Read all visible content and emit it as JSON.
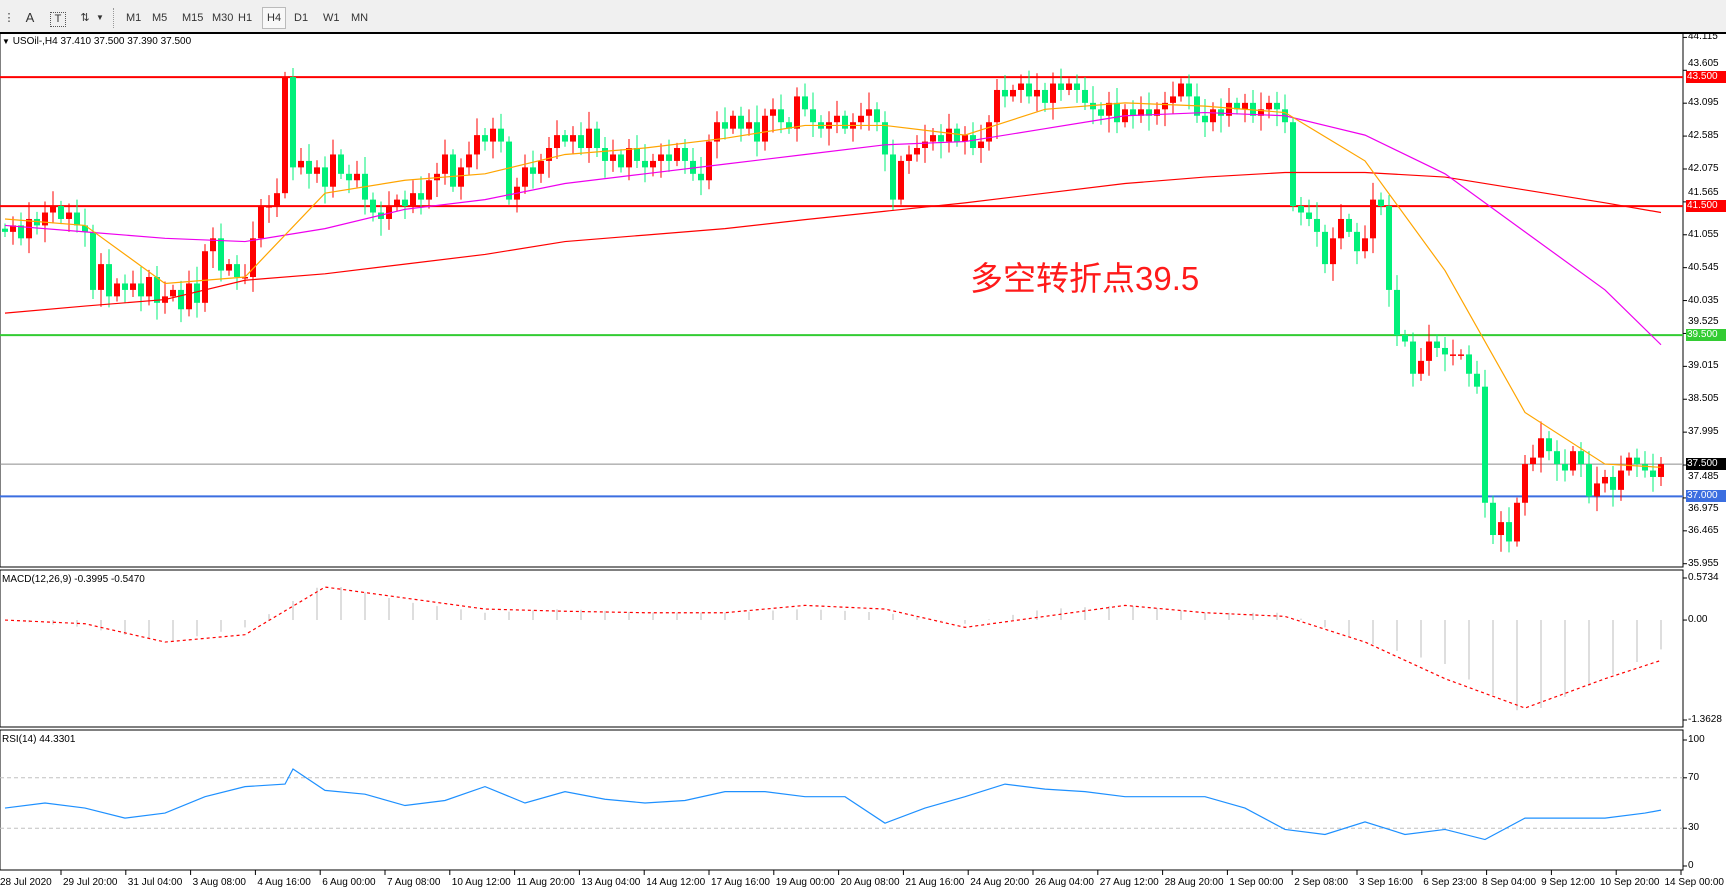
{
  "toolbar": {
    "text_tool": "A",
    "label_tool": "T",
    "timeframes": [
      "M1",
      "M5",
      "M15",
      "M30",
      "H1",
      "H4",
      "D1",
      "W1",
      "MN"
    ],
    "active_timeframe": "H4"
  },
  "chart": {
    "header": "USOil-,H4  37.410 37.500 37.390 37.500",
    "annotation": "多空转折点39.5",
    "price_axis": [
      "44.115",
      "43.605",
      "43.095",
      "42.585",
      "42.075",
      "41.565",
      "41.055",
      "40.545",
      "40.035",
      "39.525",
      "39.015",
      "38.505",
      "37.995",
      "37.485",
      "36.975",
      "36.465",
      "35.955"
    ],
    "levels": [
      {
        "price": 43.5,
        "label": "43.500",
        "color": "#ff0000"
      },
      {
        "price": 41.5,
        "label": "41.500",
        "color": "#ff0000"
      },
      {
        "price": 39.5,
        "label": "39.500",
        "color": "#33cc33"
      },
      {
        "price": 37.5,
        "label": "37.500",
        "color": "#000000",
        "line": "#8c8c8c"
      },
      {
        "price": 37.0,
        "label": "37.000",
        "color": "#3b6ee0"
      }
    ],
    "colors": {
      "up": "#ff0000",
      "down": "#00f07a",
      "ma_fast": "#ffa500",
      "ma_mid": "#ee00ee",
      "ma_slow": "#ff0000"
    },
    "time_axis": [
      "28 Jul 2020",
      "29 Jul 20:00",
      "31 Jul 04:00",
      "3 Aug 08:00",
      "4 Aug 16:00",
      "6 Aug 00:00",
      "7 Aug 08:00",
      "10 Aug 12:00",
      "11 Aug 20:00",
      "13 Aug 04:00",
      "14 Aug 12:00",
      "17 Aug 16:00",
      "19 Aug 00:00",
      "20 Aug 08:00",
      "21 Aug 16:00",
      "24 Aug 20:00",
      "26 Aug 04:00",
      "27 Aug 12:00",
      "28 Aug 20:00",
      "1 Sep 00:00",
      "2 Sep 08:00",
      "3 Sep 16:00",
      "6 Sep 23:00",
      "8 Sep 04:00",
      "9 Sep 12:00",
      "10 Sep 20:00",
      "14 Sep 00:00"
    ]
  },
  "chart_data": {
    "type": "candlestick",
    "symbol": "USOil-",
    "timeframe": "H4",
    "ylim": [
      35.955,
      44.115
    ],
    "closes": [
      41.1,
      41.2,
      41.0,
      41.3,
      41.2,
      41.4,
      41.5,
      41.3,
      41.4,
      41.2,
      41.1,
      40.2,
      40.6,
      40.1,
      40.3,
      40.2,
      40.3,
      40.1,
      40.4,
      40.0,
      40.1,
      40.2,
      39.9,
      40.3,
      40.0,
      40.8,
      41.0,
      40.5,
      40.6,
      40.4,
      40.4,
      41.0,
      41.5,
      41.5,
      41.7,
      43.5,
      42.1,
      42.2,
      42.0,
      42.1,
      41.8,
      42.3,
      42.0,
      41.9,
      42.0,
      41.6,
      41.4,
      41.3,
      41.5,
      41.6,
      41.5,
      41.7,
      41.6,
      41.9,
      42.0,
      42.3,
      41.8,
      42.1,
      42.3,
      42.6,
      42.5,
      42.7,
      42.5,
      41.6,
      41.8,
      42.1,
      42.0,
      42.2,
      42.4,
      42.6,
      42.5,
      42.6,
      42.4,
      42.7,
      42.4,
      42.2,
      42.3,
      42.1,
      42.4,
      42.2,
      42.1,
      42.2,
      42.3,
      42.2,
      42.4,
      42.2,
      42.0,
      41.9,
      42.5,
      42.8,
      42.7,
      42.9,
      42.7,
      42.8,
      42.5,
      42.9,
      43.0,
      42.8,
      42.7,
      43.2,
      43.0,
      42.8,
      42.7,
      42.8,
      42.9,
      42.7,
      42.8,
      42.9,
      43.0,
      42.8,
      42.3,
      41.6,
      42.2,
      42.3,
      42.4,
      42.5,
      42.6,
      42.5,
      42.7,
      42.5,
      42.6,
      42.4,
      42.5,
      42.8,
      43.3,
      43.2,
      43.3,
      43.4,
      43.2,
      43.3,
      43.1,
      43.4,
      43.3,
      43.4,
      43.3,
      43.1,
      43.0,
      42.9,
      43.1,
      42.8,
      43.0,
      42.9,
      43.0,
      42.9,
      43.0,
      43.1,
      43.2,
      43.4,
      43.2,
      42.9,
      42.8,
      43.0,
      42.9,
      43.1,
      43.0,
      43.1,
      42.9,
      43.0,
      43.1,
      43.0,
      42.8,
      41.5,
      41.4,
      41.3,
      41.1,
      40.6,
      41.0,
      41.3,
      41.1,
      40.8,
      41.0,
      41.6,
      41.5,
      40.2,
      39.5,
      39.4,
      38.9,
      39.1,
      39.4,
      39.3,
      39.2,
      39.2,
      39.2,
      38.9,
      38.7,
      36.9,
      36.4,
      36.6,
      36.3,
      36.9,
      37.5,
      37.6,
      37.9,
      37.7,
      37.5,
      37.4,
      37.7,
      37.5,
      37.0,
      37.2,
      37.3,
      37.1,
      37.4,
      37.6,
      37.5,
      37.4,
      37.3,
      37.5
    ],
    "ma_sample_bars": [
      0,
      10,
      20,
      30,
      40,
      50,
      60,
      70,
      80,
      90,
      100,
      110,
      120,
      130,
      140,
      150,
      160,
      170,
      180,
      190,
      200,
      207
    ],
    "ma_fast": [
      41.3,
      41.2,
      40.3,
      40.4,
      41.7,
      41.9,
      42.0,
      42.3,
      42.4,
      42.55,
      42.75,
      42.75,
      42.6,
      43.0,
      43.1,
      43.05,
      42.95,
      42.2,
      40.5,
      38.3,
      37.5,
      37.45
    ],
    "ma_mid": [
      41.2,
      41.1,
      41.0,
      40.95,
      41.15,
      41.45,
      41.6,
      41.85,
      42.0,
      42.15,
      42.3,
      42.45,
      42.5,
      42.7,
      42.9,
      42.95,
      42.9,
      42.6,
      42.0,
      41.1,
      40.2,
      39.35
    ],
    "ma_slow": [
      39.84,
      39.95,
      40.05,
      40.35,
      40.45,
      40.6,
      40.75,
      40.95,
      41.05,
      41.15,
      41.29,
      41.42,
      41.55,
      41.7,
      41.85,
      41.95,
      42.02,
      42.02,
      41.95,
      41.75,
      41.55,
      41.4
    ],
    "macd": {
      "label": "MACD(12,26,9) -0.3995 -0.5470",
      "axis": [
        "0.5734",
        "0.00",
        "-1.3628"
      ],
      "ylim": [
        -1.3628,
        0.5734
      ],
      "histogram": [
        0.0,
        -0.1,
        -0.3,
        -0.1,
        0.5,
        0.25,
        0.1,
        0.15,
        0.1,
        0.1,
        0.15,
        0.1,
        -0.05,
        0.15,
        0.2,
        0.1,
        0.1,
        -0.3,
        -0.6,
        -1.3,
        -0.8,
        -0.4
      ],
      "signal": [
        0.0,
        -0.05,
        -0.3,
        -0.2,
        0.45,
        0.3,
        0.15,
        0.12,
        0.1,
        0.1,
        0.2,
        0.15,
        -0.1,
        0.05,
        0.2,
        0.1,
        0.05,
        -0.3,
        -0.8,
        -1.2,
        -0.8,
        -0.55
      ]
    },
    "rsi": {
      "label": "RSI(14) 44.3301",
      "axis": [
        "100",
        "70",
        "30",
        "0"
      ],
      "ylim": [
        0,
        100
      ],
      "sample_bars": [
        0,
        5,
        10,
        15,
        20,
        25,
        30,
        35,
        36,
        40,
        45,
        50,
        55,
        60,
        65,
        70,
        75,
        80,
        85,
        90,
        95,
        100,
        105,
        110,
        115,
        120,
        125,
        130,
        135,
        140,
        145,
        150,
        155,
        160,
        165,
        170,
        175,
        180,
        185,
        190,
        195,
        200,
        205,
        207
      ],
      "values": [
        46,
        50,
        46,
        38,
        42,
        55,
        63,
        65,
        77,
        60,
        57,
        48,
        52,
        63,
        50,
        59,
        53,
        50,
        52,
        59,
        59,
        55,
        55,
        34,
        46,
        55,
        65,
        61,
        59,
        55,
        55,
        55,
        46,
        29,
        25,
        35,
        25,
        29,
        21,
        38,
        38,
        38,
        42,
        44.33
      ]
    }
  }
}
